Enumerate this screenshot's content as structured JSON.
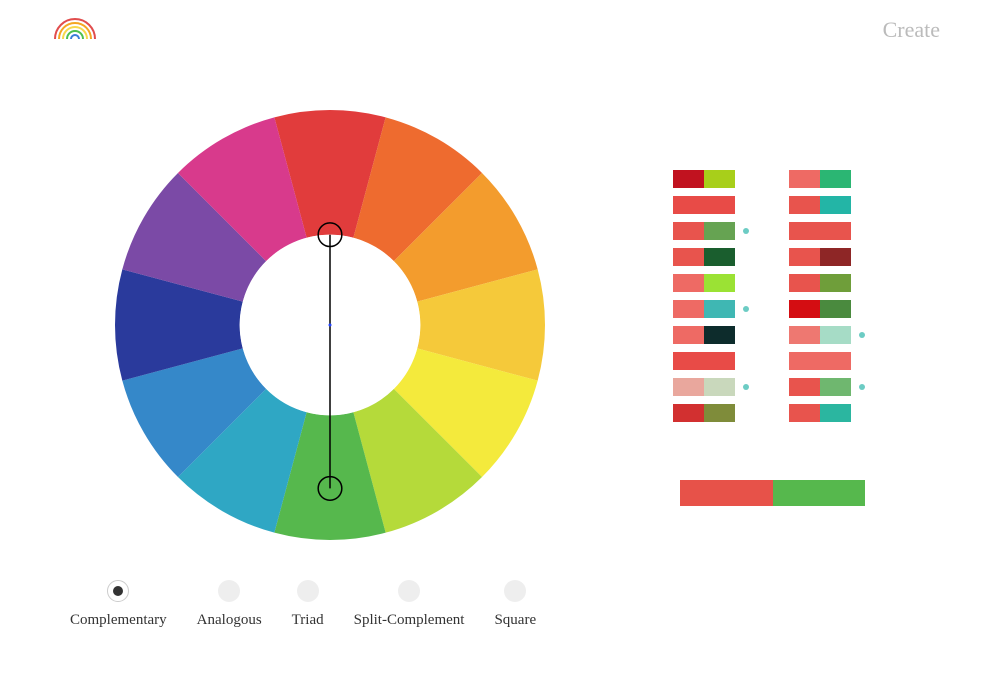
{
  "header": {
    "create_label": "Create"
  },
  "logo": {
    "arcs": [
      {
        "color": "#e14d4d",
        "r": 20
      },
      {
        "color": "#f5a623",
        "r": 16
      },
      {
        "color": "#f7d94c",
        "r": 12
      },
      {
        "color": "#4ec04e",
        "r": 8
      },
      {
        "color": "#3b7dd8",
        "r": 4
      }
    ]
  },
  "wheel": {
    "inner_ratio": 0.42,
    "segments": [
      {
        "color": "#e13c3c"
      },
      {
        "color": "#ee6b2f"
      },
      {
        "color": "#f39c2d"
      },
      {
        "color": "#f5c93a"
      },
      {
        "color": "#f4ea3c"
      },
      {
        "color": "#b5da3a"
      },
      {
        "color": "#56b84d"
      },
      {
        "color": "#2fa7c4"
      },
      {
        "color": "#3588c9"
      },
      {
        "color": "#2a3a9c"
      },
      {
        "color": "#7b4aa6"
      },
      {
        "color": "#d83a8c"
      }
    ],
    "handles": {
      "line_color": "#000000",
      "line_width": 1.5,
      "circle_r_ratio": 0.055,
      "circle_stroke": "#000000",
      "circle_fill": "none",
      "angles_deg": [
        270,
        90
      ],
      "radii_ratio": [
        0.42,
        0.76
      ]
    },
    "center_dot_color": "#2244ff"
  },
  "modes": [
    {
      "label": "Complementary",
      "active": true
    },
    {
      "label": "Analogous",
      "active": false
    },
    {
      "label": "Triad",
      "active": false
    },
    {
      "label": "Split-Complement",
      "active": false
    },
    {
      "label": "Square",
      "active": false
    }
  ],
  "swatches": {
    "left": [
      {
        "a": "#c1121f",
        "b": "#a8cf1a",
        "dot": false
      },
      {
        "a": "#e84b47",
        "b": "#e84b47",
        "dot": false
      },
      {
        "a": "#e8544d",
        "b": "#66a352",
        "dot": true
      },
      {
        "a": "#e8544d",
        "b": "#1a5e2e",
        "dot": false
      },
      {
        "a": "#ee6a64",
        "b": "#9be234",
        "dot": false
      },
      {
        "a": "#ee6a64",
        "b": "#3fb7b3",
        "dot": true
      },
      {
        "a": "#ee6a64",
        "b": "#0d2c2c",
        "dot": false
      },
      {
        "a": "#e84b47",
        "b": "#e84b47",
        "dot": false
      },
      {
        "a": "#e9a79d",
        "b": "#c9d8bc",
        "dot": true
      },
      {
        "a": "#d23030",
        "b": "#7f8c3a",
        "dot": false
      }
    ],
    "right": [
      {
        "a": "#ee6a64",
        "b": "#2bb673",
        "dot": false
      },
      {
        "a": "#e8544d",
        "b": "#23b5a6",
        "dot": false
      },
      {
        "a": "#e8544d",
        "b": "#e8544d",
        "dot": false
      },
      {
        "a": "#e8544d",
        "b": "#8e2626",
        "dot": false
      },
      {
        "a": "#e8544d",
        "b": "#6f9e3a",
        "dot": false
      },
      {
        "a": "#d40d12",
        "b": "#4a8a3e",
        "dot": false
      },
      {
        "a": "#ee7871",
        "b": "#a6dcc6",
        "dot": true
      },
      {
        "a": "#ee6a64",
        "b": "#ee6a64",
        "dot": false
      },
      {
        "a": "#e8544d",
        "b": "#6fb76f",
        "dot": true
      },
      {
        "a": "#e8544d",
        "b": "#2bb6a0",
        "dot": false
      }
    ]
  },
  "result": {
    "a": {
      "color": "#e75249",
      "width_pct": 50
    },
    "b": {
      "color": "#56b84d",
      "width_pct": 50
    }
  }
}
